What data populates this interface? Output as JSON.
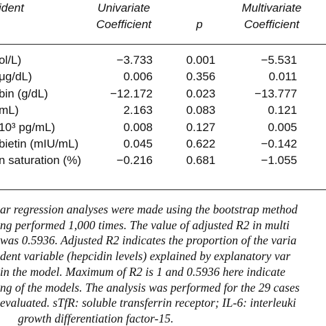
{
  "table": {
    "header": [
      "ident",
      "Univariate",
      "Coefficient",
      "p",
      "Multivariate",
      "Coefficient"
    ],
    "rows": [
      [
        "ol/L)",
        "−3.733",
        "0.001",
        "−5.531"
      ],
      [
        "μg/dL)",
        "0.006",
        "0.356",
        "0.011"
      ],
      [
        "bin (g/dL)",
        "−12.172",
        "0.023",
        "−13.777"
      ],
      [
        "mL)",
        "2.163",
        "0.083",
        "0.121"
      ],
      [
        "10³ pg/mL)",
        "0.008",
        "0.127",
        "0.005"
      ],
      [
        "bietin (mIU/mL)",
        "0.045",
        "0.622",
        "−0.142"
      ],
      [
        "n saturation (%)",
        "−0.216",
        "0.681",
        "−1.055"
      ]
    ]
  },
  "footnote": [
    "ar regression analyses were made using the bootstrap method",
    "ng performed 1,000 times. The value of adjusted R2 in multi",
    "was 0.5936. Adjusted R2 indicates the proportion of the varia",
    "dent variable (hepcidin levels) explained by explanatory var",
    "in the model. Maximum of R2 is 1 and 0.5936 here indicate",
    "ng of the models. The analysis was performed for the 29 cases",
    "evaluated. sTfR: soluble transferrin receptor; IL-6: interleuki",
    "growth differentiation factor-15."
  ]
}
